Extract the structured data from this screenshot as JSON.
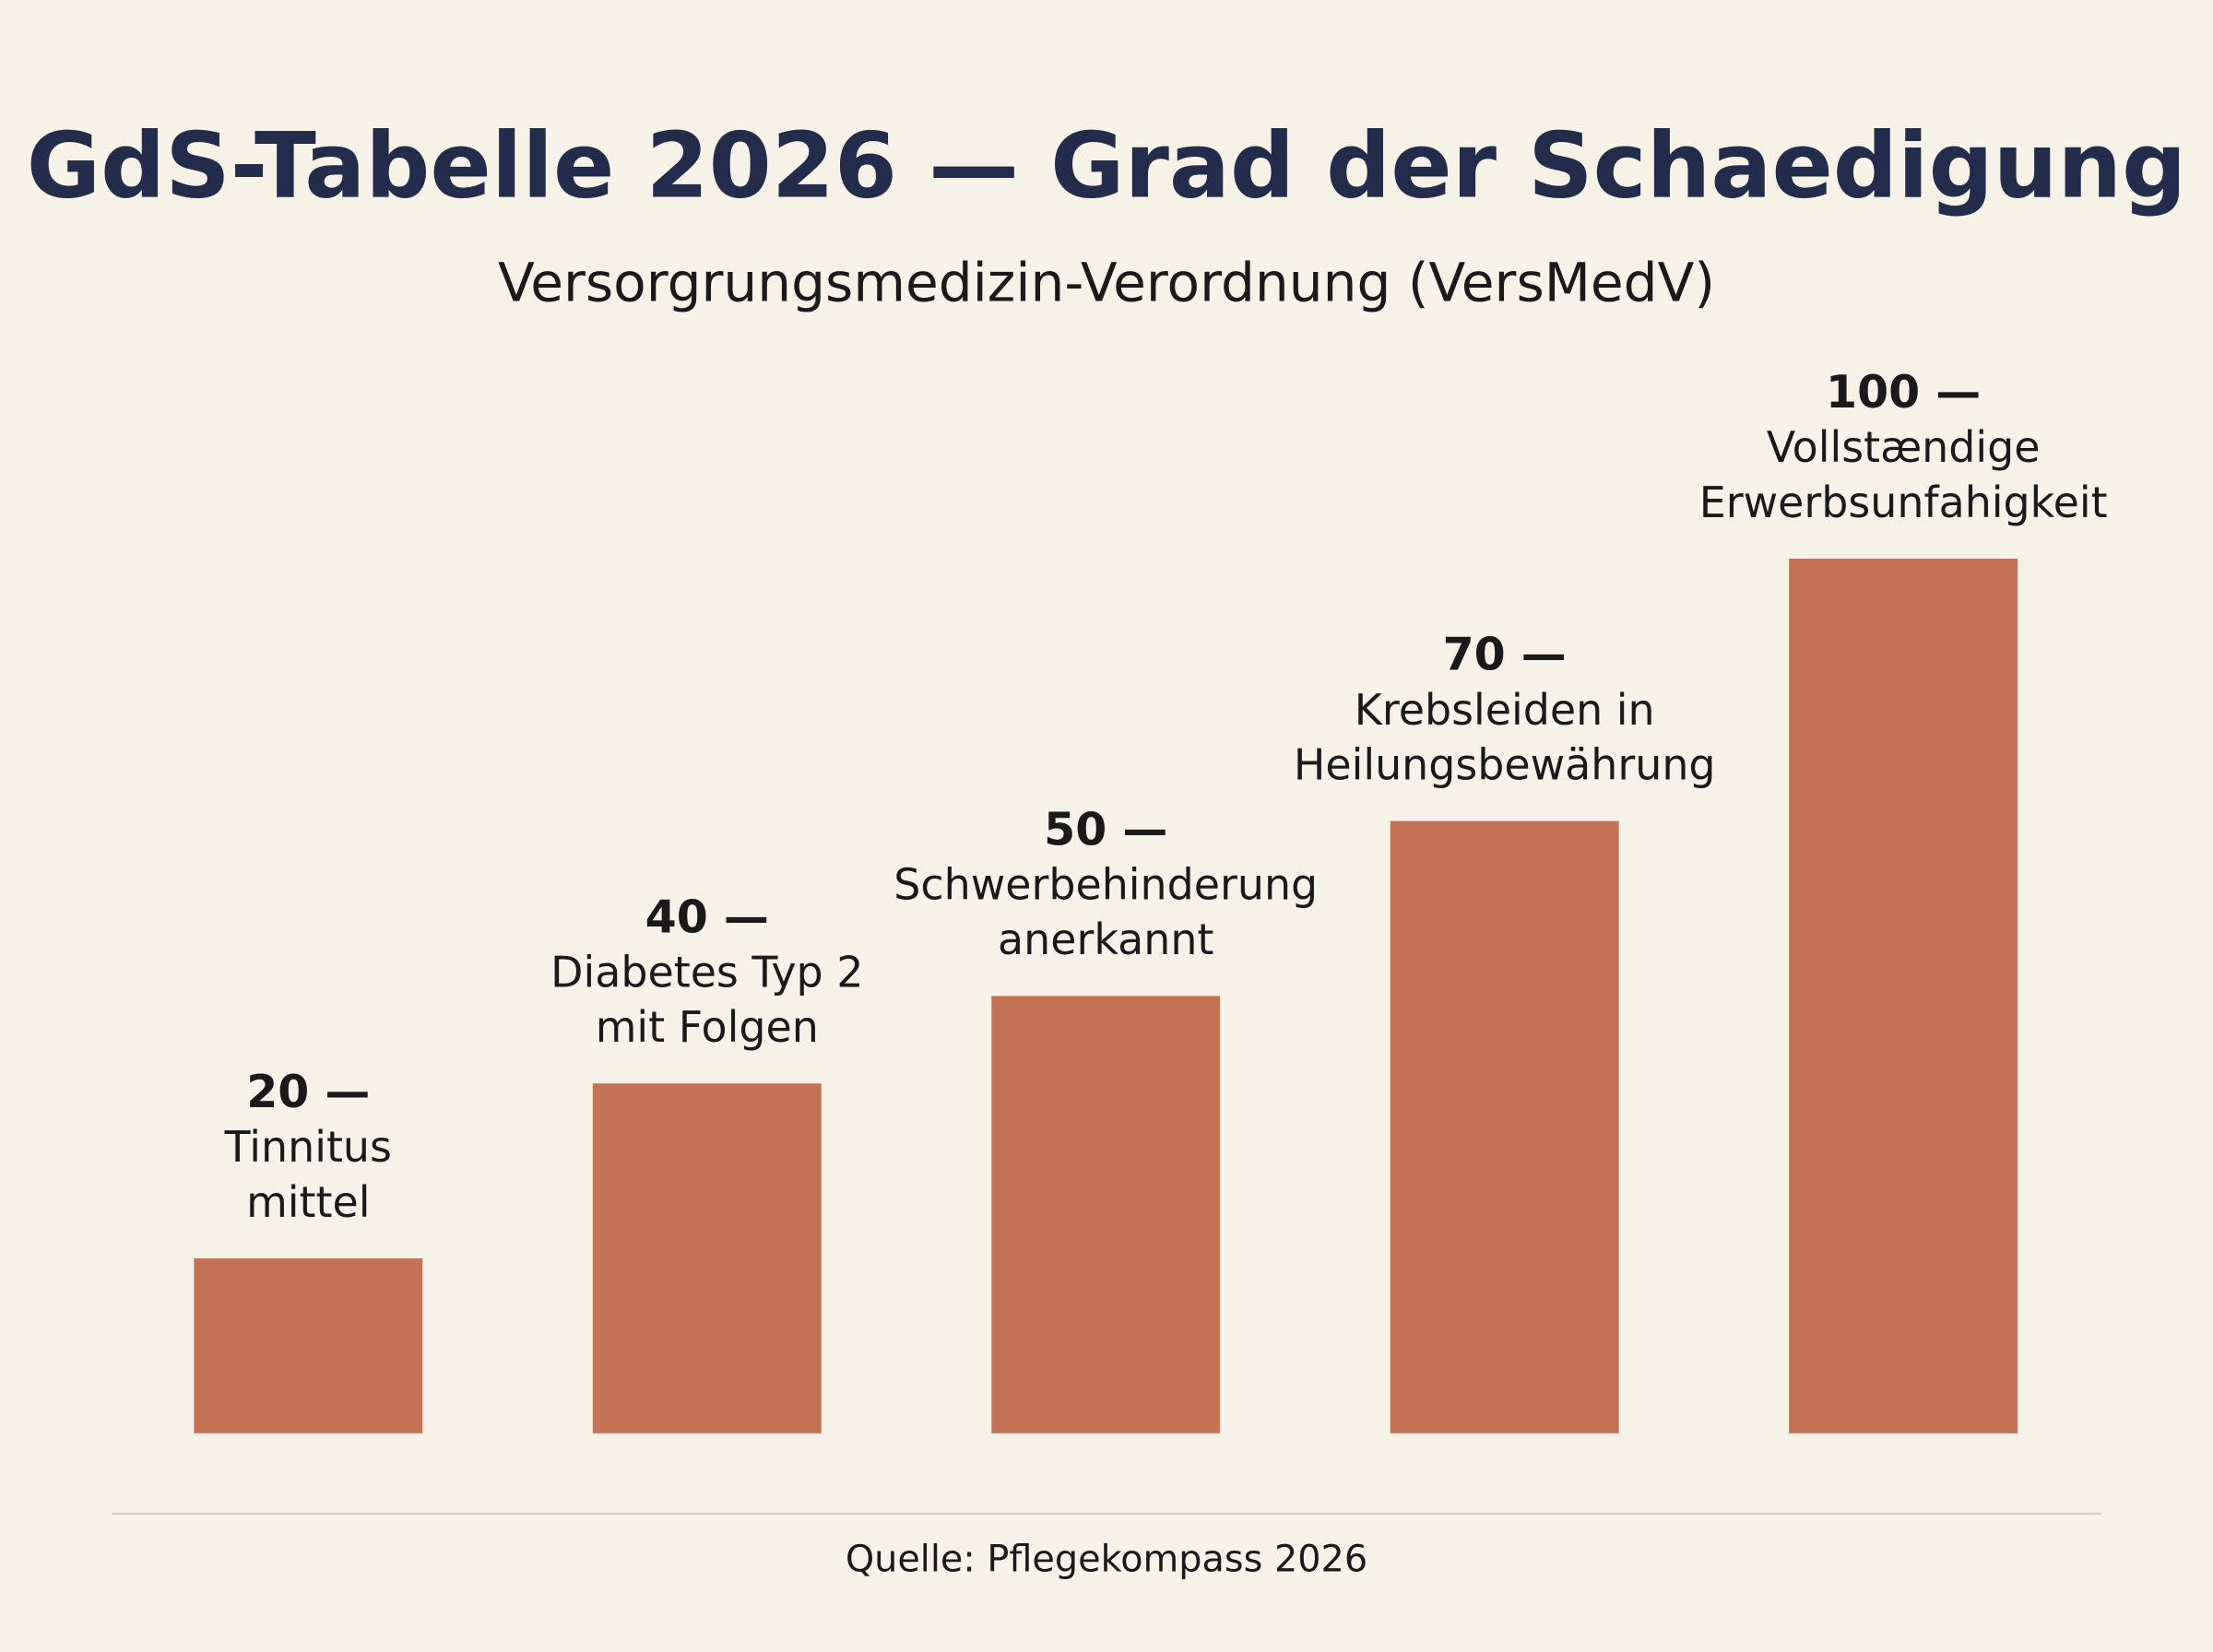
{
  "chart_data": {
    "type": "bar",
    "title": "GdS-Tabelle 2026 — Grad der Schaedigung",
    "subtitle": "Versorgrungsmedizin-Verordnung (VersMedV)",
    "categories": [
      "Tinnitus\nmittel",
      "Diabetes Typ 2\nmit Folgen",
      "Schwerbehinderung\nanerkannt",
      "Krebsleiden in\nHeilungsbewährung",
      "Vollstændige\nErwerbsunfahigkeit"
    ],
    "values": [
      20,
      40,
      50,
      70,
      100
    ],
    "value_labels": [
      "20 —",
      "40 —",
      "50 —",
      "70 —",
      "100 —"
    ],
    "color": "#c37255",
    "ylim": [
      0,
      100
    ],
    "source": "Quelle: Pflegekompass 2026"
  }
}
